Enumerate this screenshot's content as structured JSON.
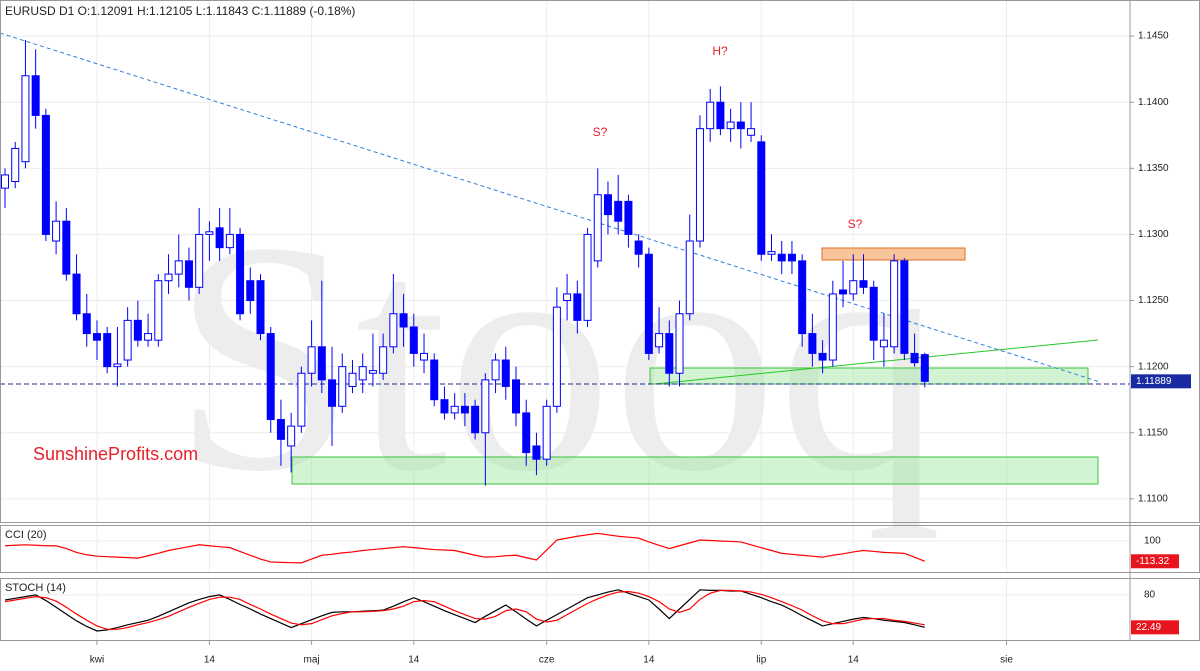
{
  "chart_data": {
    "type": "candlestick",
    "title": "EURUSD  D1  O:1.12091  H:1.12105  L:1.11843  C:1.11889  (-0.18%)",
    "watermark": "Stooq",
    "source": "SunshineProfits.com",
    "annotations": [
      "S?",
      "H?",
      "S?"
    ],
    "up_color": "#ffffff",
    "down_color": "#0000ff",
    "color": "#0000ff",
    "grid": true,
    "categories": [
      null,
      null,
      null,
      null,
      null,
      null,
      null,
      null,
      null,
      "kwi",
      null,
      null,
      null,
      null,
      null,
      null,
      null,
      null,
      null,
      null,
      "14",
      null,
      null,
      null,
      null,
      null,
      null,
      null,
      null,
      null,
      "maj",
      null,
      null,
      null,
      null,
      null,
      null,
      null,
      null,
      null,
      "14",
      null,
      null,
      null,
      null,
      null,
      null,
      null,
      null,
      null,
      null,
      null,
      null,
      "cze",
      null,
      null,
      null,
      null,
      null,
      null,
      null,
      null,
      null,
      "14",
      null,
      null,
      null,
      null,
      null,
      null,
      null,
      null,
      null,
      null,
      "lip",
      null,
      null,
      null,
      null,
      null,
      null,
      null,
      null,
      "14",
      null,
      null,
      null,
      null,
      null,
      null,
      null,
      null,
      null,
      null,
      null,
      null,
      null,
      null,
      "sie"
    ],
    "open": [
      1.1335,
      1.134,
      1.1355,
      1.142,
      1.139,
      1.1295,
      1.131,
      1.127,
      1.124,
      1.1225,
      1.1225,
      1.12,
      1.1205,
      1.1235,
      1.122,
      1.122,
      1.1265,
      1.127,
      1.128,
      1.126,
      1.13,
      1.1305,
      1.129,
      1.13,
      1.1265,
      1.1265,
      1.1225,
      1.116,
      1.114,
      1.1155,
      1.1195,
      1.1215,
      1.119,
      1.117,
      1.1185,
      1.119,
      1.1195,
      1.1195,
      1.1215,
      1.124,
      1.123,
      1.1205,
      1.1205,
      1.1175,
      1.1165,
      1.117,
      1.117,
      1.115,
      1.119,
      1.1205,
      1.119,
      1.1165,
      1.114,
      1.113,
      1.117,
      1.125,
      1.1255,
      1.1235,
      1.128,
      1.133,
      1.1325,
      1.1325,
      1.1295,
      1.1285,
      1.1215,
      1.1225,
      1.1195,
      1.124,
      1.1295,
      1.138,
      1.14,
      1.138,
      1.1385,
      1.1375,
      1.137,
      1.1285,
      1.1285,
      1.1285,
      1.128,
      1.1225,
      1.121,
      1.1205,
      1.1258,
      1.1255,
      1.1265,
      1.126,
      1.1215,
      1.1215,
      1.128,
      1.121,
      1.12091,
      null,
      null,
      null,
      null,
      null,
      null,
      null,
      null
    ],
    "high": [
      1.135,
      1.137,
      1.1447,
      1.144,
      1.1395,
      1.1325,
      1.132,
      1.1285,
      1.1255,
      1.1235,
      1.123,
      1.123,
      1.1245,
      1.125,
      1.124,
      1.127,
      1.1285,
      1.13,
      1.129,
      1.132,
      1.131,
      1.132,
      1.132,
      1.1305,
      1.1275,
      1.127,
      1.123,
      1.1175,
      1.1165,
      1.12,
      1.1235,
      1.1265,
      1.1215,
      1.121,
      1.1205,
      1.121,
      1.1225,
      1.1225,
      1.127,
      1.1255,
      1.124,
      1.1225,
      1.121,
      1.1185,
      1.118,
      1.118,
      1.1175,
      1.1195,
      1.121,
      1.1215,
      1.12,
      1.1175,
      1.115,
      1.1175,
      1.126,
      1.127,
      1.1265,
      1.1305,
      1.135,
      1.134,
      1.1345,
      1.133,
      1.13,
      1.129,
      1.1245,
      1.1235,
      1.125,
      1.1315,
      1.139,
      1.141,
      1.1412,
      1.1395,
      1.14,
      1.14,
      1.1375,
      1.13,
      1.1295,
      1.1295,
      1.1285,
      1.124,
      1.122,
      1.1265,
      1.128,
      1.1285,
      1.1285,
      1.1265,
      1.124,
      1.1285,
      1.1282,
      1.1225,
      1.12105,
      null,
      null,
      null,
      null,
      null,
      null,
      null,
      null
    ],
    "low": [
      1.132,
      1.1335,
      1.135,
      1.138,
      1.1295,
      1.1285,
      1.1265,
      1.1235,
      1.1215,
      1.1205,
      1.1195,
      1.1185,
      1.12,
      1.1215,
      1.1215,
      1.1215,
      1.1255,
      1.126,
      1.125,
      1.1255,
      1.128,
      1.128,
      1.1285,
      1.1235,
      1.124,
      1.122,
      1.115,
      1.1125,
      1.112,
      1.115,
      1.1185,
      1.118,
      1.114,
      1.1165,
      1.118,
      1.118,
      1.1185,
      1.119,
      1.121,
      1.1215,
      1.12,
      1.1195,
      1.117,
      1.116,
      1.116,
      1.1155,
      1.1145,
      1.111,
      1.118,
      1.1175,
      1.1155,
      1.1125,
      1.1118,
      1.1125,
      1.1165,
      1.1235,
      1.1225,
      1.123,
      1.1275,
      1.13,
      1.13,
      1.129,
      1.1275,
      1.1205,
      1.121,
      1.1185,
      1.1185,
      1.1235,
      1.129,
      1.137,
      1.1375,
      1.137,
      1.1365,
      1.137,
      1.128,
      1.128,
      1.127,
      1.127,
      1.1215,
      1.12,
      1.1195,
      1.12,
      1.1245,
      1.125,
      1.1255,
      1.1205,
      1.12,
      1.121,
      1.1205,
      1.12,
      1.11843,
      null,
      null,
      null,
      null,
      null,
      null,
      null,
      null
    ],
    "close": [
      1.1345,
      1.1365,
      1.142,
      1.139,
      1.13,
      1.131,
      1.127,
      1.124,
      1.1225,
      1.122,
      1.12,
      1.1202,
      1.1235,
      1.122,
      1.1225,
      1.1265,
      1.127,
      1.128,
      1.126,
      1.13,
      1.1302,
      1.129,
      1.13,
      1.124,
      1.125,
      1.1225,
      1.116,
      1.1145,
      1.1155,
      1.1195,
      1.1215,
      1.119,
      1.117,
      1.12,
      1.1195,
      1.12,
      1.1197,
      1.1215,
      1.124,
      1.123,
      1.121,
      1.121,
      1.1175,
      1.1165,
      1.117,
      1.1165,
      1.115,
      1.119,
      1.1205,
      1.1185,
      1.1165,
      1.1135,
      1.113,
      1.117,
      1.1245,
      1.1255,
      1.1235,
      1.13,
      1.133,
      1.1315,
      1.131,
      1.13,
      1.1285,
      1.121,
      1.1225,
      1.1195,
      1.124,
      1.1295,
      1.138,
      1.14,
      1.138,
      1.1385,
      1.138,
      1.138,
      1.1285,
      1.1287,
      1.128,
      1.128,
      1.1225,
      1.121,
      1.1205,
      1.1255,
      1.1255,
      1.1265,
      1.126,
      1.122,
      1.122,
      1.128,
      1.121,
      1.1203,
      1.11889,
      null,
      null,
      null,
      null,
      null,
      null,
      null,
      null
    ],
    "ylim": [
      1.10825,
      1.14773
    ],
    "yticks": [
      {
        "value": 1.11,
        "label": "1.1100"
      },
      {
        "value": 1.115,
        "label": "1.1150"
      },
      {
        "value": 1.12,
        "label": "1.1200"
      },
      {
        "value": 1.125,
        "label": "1.1250"
      },
      {
        "value": 1.13,
        "label": "1.1300"
      },
      {
        "value": 1.135,
        "label": "1.1350"
      },
      {
        "value": 1.14,
        "label": "1.1400"
      },
      {
        "value": 1.145,
        "label": "1.1450"
      }
    ],
    "indicators": [
      {
        "title": "CCI (20)",
        "ylim": [
          -226,
          268
        ],
        "yticks": [
          100
        ],
        "series": [
          {
            "color": "#ff0000",
            "values": [
              50,
              55,
              60,
              55,
              50,
              50,
              20,
              -20,
              -45,
              -60,
              -65,
              -70,
              -75,
              -80,
              -55,
              -30,
              0,
              20,
              40,
              60,
              50,
              40,
              30,
              -10,
              -50,
              -90,
              -120,
              -125,
              -128,
              -130,
              -90,
              -50,
              -40,
              -25,
              -15,
              0,
              10,
              20,
              30,
              40,
              30,
              20,
              10,
              5,
              0,
              -25,
              -50,
              -70,
              -65,
              -55,
              -50,
              -75,
              -100,
              5,
              110,
              130,
              150,
              165,
              180,
              165,
              150,
              140,
              130,
              90,
              55,
              20,
              50,
              80,
              110,
              105,
              100,
              95,
              90,
              60,
              30,
              0,
              -30,
              -40,
              -50,
              -60,
              -70,
              -50,
              -35,
              -15,
              0,
              -10,
              -20,
              -25,
              -30,
              -70,
              -113.32,
              null,
              null,
              null,
              null,
              null,
              null,
              null,
              null
            ]
          }
        ]
      },
      {
        "title": "STOCH (14)",
        "ylim": [
          0,
          110
        ],
        "yticks": [
          80
        ],
        "series": [
          {
            "color": "#000000",
            "values": [
              71,
              74,
              77,
              80,
              70,
              58,
              46,
              34,
              24,
              16,
              18,
              22,
              27,
              31,
              35,
              42,
              50,
              58,
              66,
              72,
              77,
              80,
              72,
              63,
              55,
              46,
              38,
              30,
              22,
              29,
              36,
              43,
              49,
              50,
              50,
              51,
              52,
              53,
              60,
              68,
              75,
              68,
              60,
              52,
              45,
              38,
              31,
              42,
              52,
              62,
              50,
              37,
              25,
              35,
              45,
              55,
              65,
              75,
              80,
              85,
              89,
              83,
              77,
              71,
              55,
              38,
              55,
              72,
              89,
              88,
              88,
              87,
              87,
              81,
              75,
              68,
              62,
              53,
              43,
              34,
              25,
              29,
              33,
              37,
              40,
              38,
              35,
              33,
              31,
              27,
              22.49,
              null,
              null,
              null,
              null,
              null,
              null,
              null,
              null
            ]
          },
          {
            "color": "#ff0000",
            "values": [
              68,
              71,
              74,
              77,
              75,
              69,
              58,
              46,
              35,
              25,
              19,
              19,
              22,
              27,
              31,
              36,
              42,
              50,
              58,
              65,
              72,
              76,
              76,
              72,
              63,
              55,
              46,
              38,
              30,
              27,
              29,
              36,
              43,
              47,
              50,
              50,
              51,
              52,
              55,
              60,
              68,
              70,
              68,
              60,
              52,
              45,
              38,
              37,
              42,
              52,
              55,
              50,
              37,
              32,
              35,
              45,
              55,
              65,
              73,
              80,
              85,
              86,
              83,
              77,
              68,
              55,
              49,
              55,
              72,
              83,
              88,
              88,
              87,
              85,
              81,
              75,
              68,
              61,
              53,
              43,
              34,
              29,
              29,
              33,
              37,
              38,
              38,
              35,
              33,
              30,
              27,
              null,
              null,
              null,
              null,
              null,
              null,
              null,
              null
            ]
          }
        ]
      }
    ]
  }
}
